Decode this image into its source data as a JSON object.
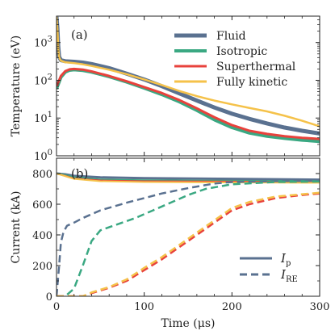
{
  "chart_data": [
    {
      "type": "line",
      "panel_label": "(a)",
      "ylabel": "Temperature (eV)",
      "yscale": "log",
      "xlim": [
        0,
        300
      ],
      "ylim": [
        1,
        5000
      ],
      "yticks": [
        {
          "value": 1,
          "base": "10",
          "exp": "0"
        },
        {
          "value": 10,
          "base": "10",
          "exp": "1"
        },
        {
          "value": 100,
          "base": "10",
          "exp": "2"
        },
        {
          "value": 1000,
          "base": "10",
          "exp": "3"
        }
      ],
      "legend_position": "top-right",
      "series": [
        {
          "name": "Fluid",
          "color": "#5a7190",
          "width": 5,
          "points": [
            [
              0,
              4800
            ],
            [
              1,
              2500
            ],
            [
              2,
              800
            ],
            [
              3,
              420
            ],
            [
              5,
              340
            ],
            [
              10,
              320
            ],
            [
              20,
              310
            ],
            [
              30,
              295
            ],
            [
              40,
              270
            ],
            [
              60,
              210
            ],
            [
              80,
              150
            ],
            [
              100,
              105
            ],
            [
              120,
              70
            ],
            [
              140,
              45
            ],
            [
              160,
              29
            ],
            [
              180,
              19
            ],
            [
              200,
              13
            ],
            [
              220,
              9.5
            ],
            [
              240,
              7.2
            ],
            [
              260,
              5.6
            ],
            [
              280,
              4.6
            ],
            [
              300,
              3.9
            ]
          ]
        },
        {
          "name": "Isotropic",
          "color": "#3aa882",
          "width": 4,
          "points": [
            [
              0,
              60
            ],
            [
              3,
              90
            ],
            [
              5,
              120
            ],
            [
              10,
              165
            ],
            [
              15,
              185
            ],
            [
              20,
              190
            ],
            [
              30,
              182
            ],
            [
              40,
              165
            ],
            [
              60,
              125
            ],
            [
              80,
              90
            ],
            [
              100,
              62
            ],
            [
              120,
              42
            ],
            [
              140,
              27
            ],
            [
              160,
              16
            ],
            [
              180,
              9
            ],
            [
              200,
              5.6
            ],
            [
              220,
              4
            ],
            [
              240,
              3.3
            ],
            [
              260,
              2.9
            ],
            [
              280,
              2.6
            ],
            [
              300,
              2.4
            ]
          ]
        },
        {
          "name": "Superthermal",
          "color": "#e8423c",
          "width": 3,
          "points": [
            [
              0,
              70
            ],
            [
              3,
              100
            ],
            [
              5,
              130
            ],
            [
              10,
              175
            ],
            [
              15,
              195
            ],
            [
              20,
              200
            ],
            [
              30,
              192
            ],
            [
              40,
              172
            ],
            [
              60,
              130
            ],
            [
              80,
              94
            ],
            [
              100,
              66
            ],
            [
              120,
              46
            ],
            [
              140,
              30
            ],
            [
              160,
              18
            ],
            [
              180,
              10.5
            ],
            [
              200,
              6.5
            ],
            [
              220,
              4.6
            ],
            [
              240,
              3.8
            ],
            [
              260,
              3.3
            ],
            [
              280,
              3.0
            ],
            [
              300,
              2.8
            ]
          ]
        },
        {
          "name": "Fully kinetic",
          "color": "#f5c24a",
          "width": 2.5,
          "points": [
            [
              0,
              4800
            ],
            [
              1,
              2400
            ],
            [
              2,
              700
            ],
            [
              3,
              400
            ],
            [
              5,
              330
            ],
            [
              10,
              300
            ],
            [
              20,
              285
            ],
            [
              30,
              265
            ],
            [
              40,
              240
            ],
            [
              60,
              190
            ],
            [
              80,
              145
            ],
            [
              100,
              105
            ],
            [
              120,
              75
            ],
            [
              140,
              52
            ],
            [
              160,
              38
            ],
            [
              180,
              29
            ],
            [
              200,
              23
            ],
            [
              220,
              18.5
            ],
            [
              240,
              15
            ],
            [
              260,
              11.5
            ],
            [
              280,
              8.5
            ],
            [
              300,
              6
            ]
          ]
        }
      ]
    },
    {
      "type": "line",
      "panel_label": "(b)",
      "ylabel": "Current (kA)",
      "xlabel": "Time (μs)",
      "xlim": [
        0,
        300
      ],
      "ylim": [
        0,
        900
      ],
      "xticks": [
        0,
        100,
        200,
        300
      ],
      "yticks": [
        0,
        200,
        400,
        600,
        800
      ],
      "legend_position": "bottom-right",
      "legend": [
        {
          "base": "I",
          "sub": "p",
          "style": "solid"
        },
        {
          "base": "I",
          "sub": "RE",
          "style": "dashed"
        }
      ],
      "series": [
        {
          "color": "#5a7190",
          "style": "solid",
          "width": 3,
          "points": [
            [
              0,
              800
            ],
            [
              10,
              795
            ],
            [
              20,
              785
            ],
            [
              50,
              775
            ],
            [
              100,
              770
            ],
            [
              200,
              765
            ],
            [
              300,
              760
            ]
          ]
        },
        {
          "color": "#3aa882",
          "style": "solid",
          "width": 2.5,
          "points": [
            [
              0,
              800
            ],
            [
              10,
              790
            ],
            [
              20,
              775
            ],
            [
              50,
              760
            ],
            [
              100,
              755
            ],
            [
              200,
              752
            ],
            [
              300,
              750
            ]
          ]
        },
        {
          "color": "#e8423c",
          "style": "solid",
          "width": 2,
          "points": [
            [
              0,
              800
            ],
            [
              10,
              785
            ],
            [
              20,
              768
            ],
            [
              50,
              755
            ],
            [
              100,
              750
            ],
            [
              200,
              748
            ],
            [
              300,
              745
            ]
          ]
        },
        {
          "color": "#f5c24a",
          "style": "solid",
          "width": 2,
          "points": [
            [
              0,
              800
            ],
            [
              10,
              783
            ],
            [
              20,
              765
            ],
            [
              50,
              750
            ],
            [
              100,
              745
            ],
            [
              200,
              742
            ],
            [
              300,
              740
            ]
          ]
        },
        {
          "color": "#5a7190",
          "style": "dashed",
          "width": 2.5,
          "points": [
            [
              0,
              0
            ],
            [
              3,
              200
            ],
            [
              5,
              350
            ],
            [
              8,
              420
            ],
            [
              12,
              460
            ],
            [
              20,
              480
            ],
            [
              30,
              510
            ],
            [
              50,
              560
            ],
            [
              80,
              610
            ],
            [
              100,
              640
            ],
            [
              120,
              670
            ],
            [
              150,
              705
            ],
            [
              180,
              735
            ],
            [
              200,
              745
            ],
            [
              250,
              750
            ],
            [
              300,
              752
            ]
          ]
        },
        {
          "color": "#3aa882",
          "style": "dashed",
          "width": 2.5,
          "points": [
            [
              0,
              0
            ],
            [
              10,
              0
            ],
            [
              20,
              50
            ],
            [
              30,
              200
            ],
            [
              40,
              360
            ],
            [
              50,
              430
            ],
            [
              70,
              470
            ],
            [
              90,
              510
            ],
            [
              110,
              560
            ],
            [
              130,
              610
            ],
            [
              150,
              660
            ],
            [
              170,
              700
            ],
            [
              200,
              730
            ],
            [
              250,
              745
            ],
            [
              300,
              748
            ]
          ]
        },
        {
          "color": "#e8423c",
          "style": "dashed",
          "width": 2.5,
          "points": [
            [
              0,
              0
            ],
            [
              10,
              0
            ],
            [
              20,
              0
            ],
            [
              30,
              0
            ],
            [
              40,
              20
            ],
            [
              60,
              55
            ],
            [
              80,
              100
            ],
            [
              100,
              170
            ],
            [
              120,
              240
            ],
            [
              140,
              320
            ],
            [
              160,
              400
            ],
            [
              180,
              480
            ],
            [
              200,
              560
            ],
            [
              220,
              600
            ],
            [
              250,
              640
            ],
            [
              280,
              660
            ],
            [
              300,
              670
            ]
          ]
        },
        {
          "color": "#f5c24a",
          "style": "dashed",
          "width": 2.5,
          "points": [
            [
              0,
              0
            ],
            [
              10,
              0
            ],
            [
              20,
              0
            ],
            [
              30,
              0
            ],
            [
              40,
              25
            ],
            [
              60,
              60
            ],
            [
              80,
              110
            ],
            [
              100,
              185
            ],
            [
              120,
              255
            ],
            [
              140,
              335
            ],
            [
              160,
              415
            ],
            [
              180,
              495
            ],
            [
              200,
              575
            ],
            [
              220,
              615
            ],
            [
              250,
              650
            ],
            [
              280,
              665
            ],
            [
              300,
              675
            ]
          ]
        }
      ]
    }
  ]
}
